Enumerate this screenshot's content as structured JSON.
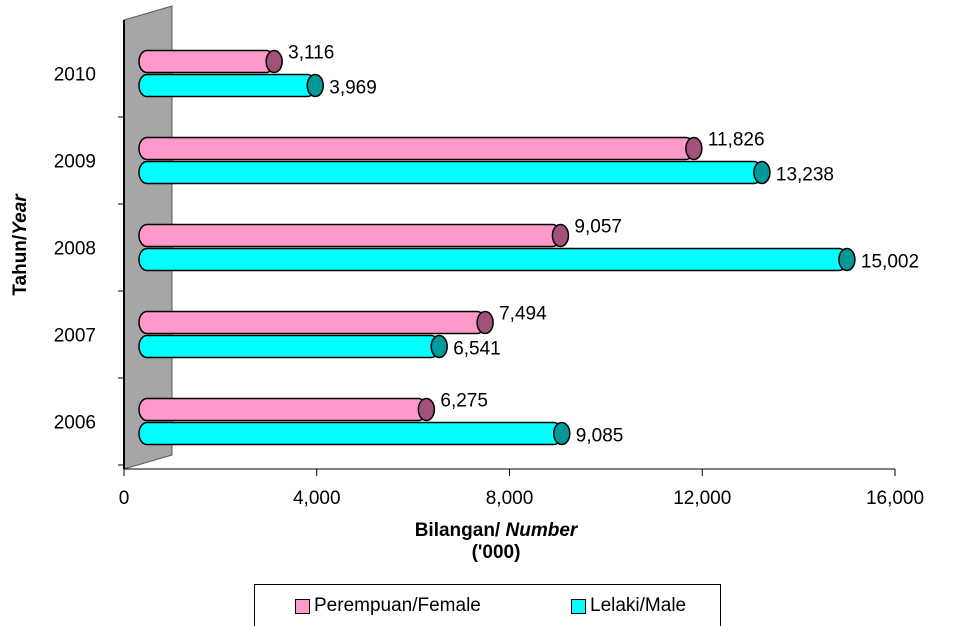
{
  "chart_data": {
    "type": "bar",
    "orientation": "horizontal",
    "categories": [
      "2006",
      "2007",
      "2008",
      "2009",
      "2010"
    ],
    "series": [
      {
        "name": "Perempuan/Female",
        "values": [
          6275,
          7494,
          9057,
          11826,
          3116
        ],
        "color": "#ff99cc",
        "end_color": "#a0527a"
      },
      {
        "name": "Lelaki/Male",
        "values": [
          9085,
          6541,
          15002,
          13238,
          3969
        ],
        "color": "#00ffff",
        "end_color": "#009999"
      }
    ],
    "value_labels": {
      "Perempuan/Female": [
        "6,275",
        "7,494",
        "9,057",
        "11,826",
        "3,116"
      ],
      "Lelaki/Male": [
        "9,085",
        "6,541",
        "15,002",
        "13,238",
        "3,969"
      ]
    },
    "x_ticks": [
      "0",
      "4,000",
      "8,000",
      "12,000",
      "16,000"
    ],
    "x_tick_values": [
      0,
      4000,
      8000,
      12000,
      16000
    ],
    "xlim": [
      0,
      16000
    ],
    "xlabel": {
      "prefix": "Bilangan/ ",
      "italic": "Number",
      "unit": "('000)"
    },
    "ylabel": {
      "prefix": "Tahun/",
      "italic": "Year"
    },
    "legend_position": "bottom",
    "grid": false
  }
}
